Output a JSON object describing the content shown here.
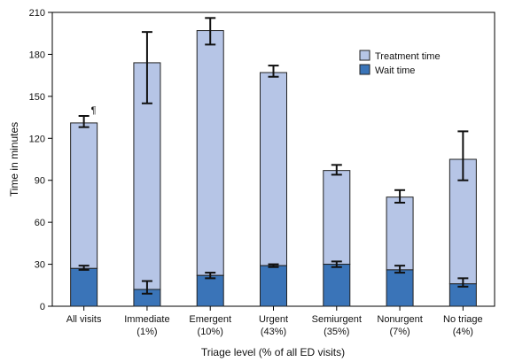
{
  "chart_data": {
    "type": "bar",
    "stacked": true,
    "xlabel": "Triage level (% of all ED visits)",
    "ylabel": "Time in minutes",
    "ylim": [
      0,
      210
    ],
    "yticks": [
      0,
      30,
      60,
      90,
      120,
      150,
      180,
      210
    ],
    "grid": false,
    "legend_position": "top-right",
    "categories": [
      {
        "name": "All visits",
        "share": "",
        "footnote": "¶"
      },
      {
        "name": "Immediate",
        "share": "(1%)",
        "footnote": ""
      },
      {
        "name": "Emergent",
        "share": "(10%)",
        "footnote": ""
      },
      {
        "name": "Urgent",
        "share": "(43%)",
        "footnote": ""
      },
      {
        "name": "Semiurgent",
        "share": "(35%)",
        "footnote": ""
      },
      {
        "name": "Nonurgent",
        "share": "(7%)",
        "footnote": ""
      },
      {
        "name": "No triage",
        "share": "(4%)",
        "footnote": ""
      }
    ],
    "series": [
      {
        "name": "Wait time",
        "color": "#3a74b8",
        "values": [
          27,
          12,
          22,
          29,
          30,
          26,
          16
        ],
        "ci_low": [
          26,
          9,
          20,
          28,
          28,
          24,
          14
        ],
        "ci_high": [
          29,
          18,
          24,
          30,
          32,
          29,
          20
        ]
      },
      {
        "name": "Treatment time",
        "color": "#b6c5e6",
        "totals": [
          131,
          174,
          197,
          167,
          97,
          78,
          105
        ],
        "ci_low": [
          128,
          145,
          187,
          164,
          94,
          74,
          90
        ],
        "ci_high": [
          136,
          196,
          206,
          172,
          101,
          83,
          125
        ]
      }
    ],
    "legend": [
      {
        "label": "Treatment time",
        "color": "#b6c5e6"
      },
      {
        "label": "Wait time",
        "color": "#3a74b8"
      }
    ]
  }
}
